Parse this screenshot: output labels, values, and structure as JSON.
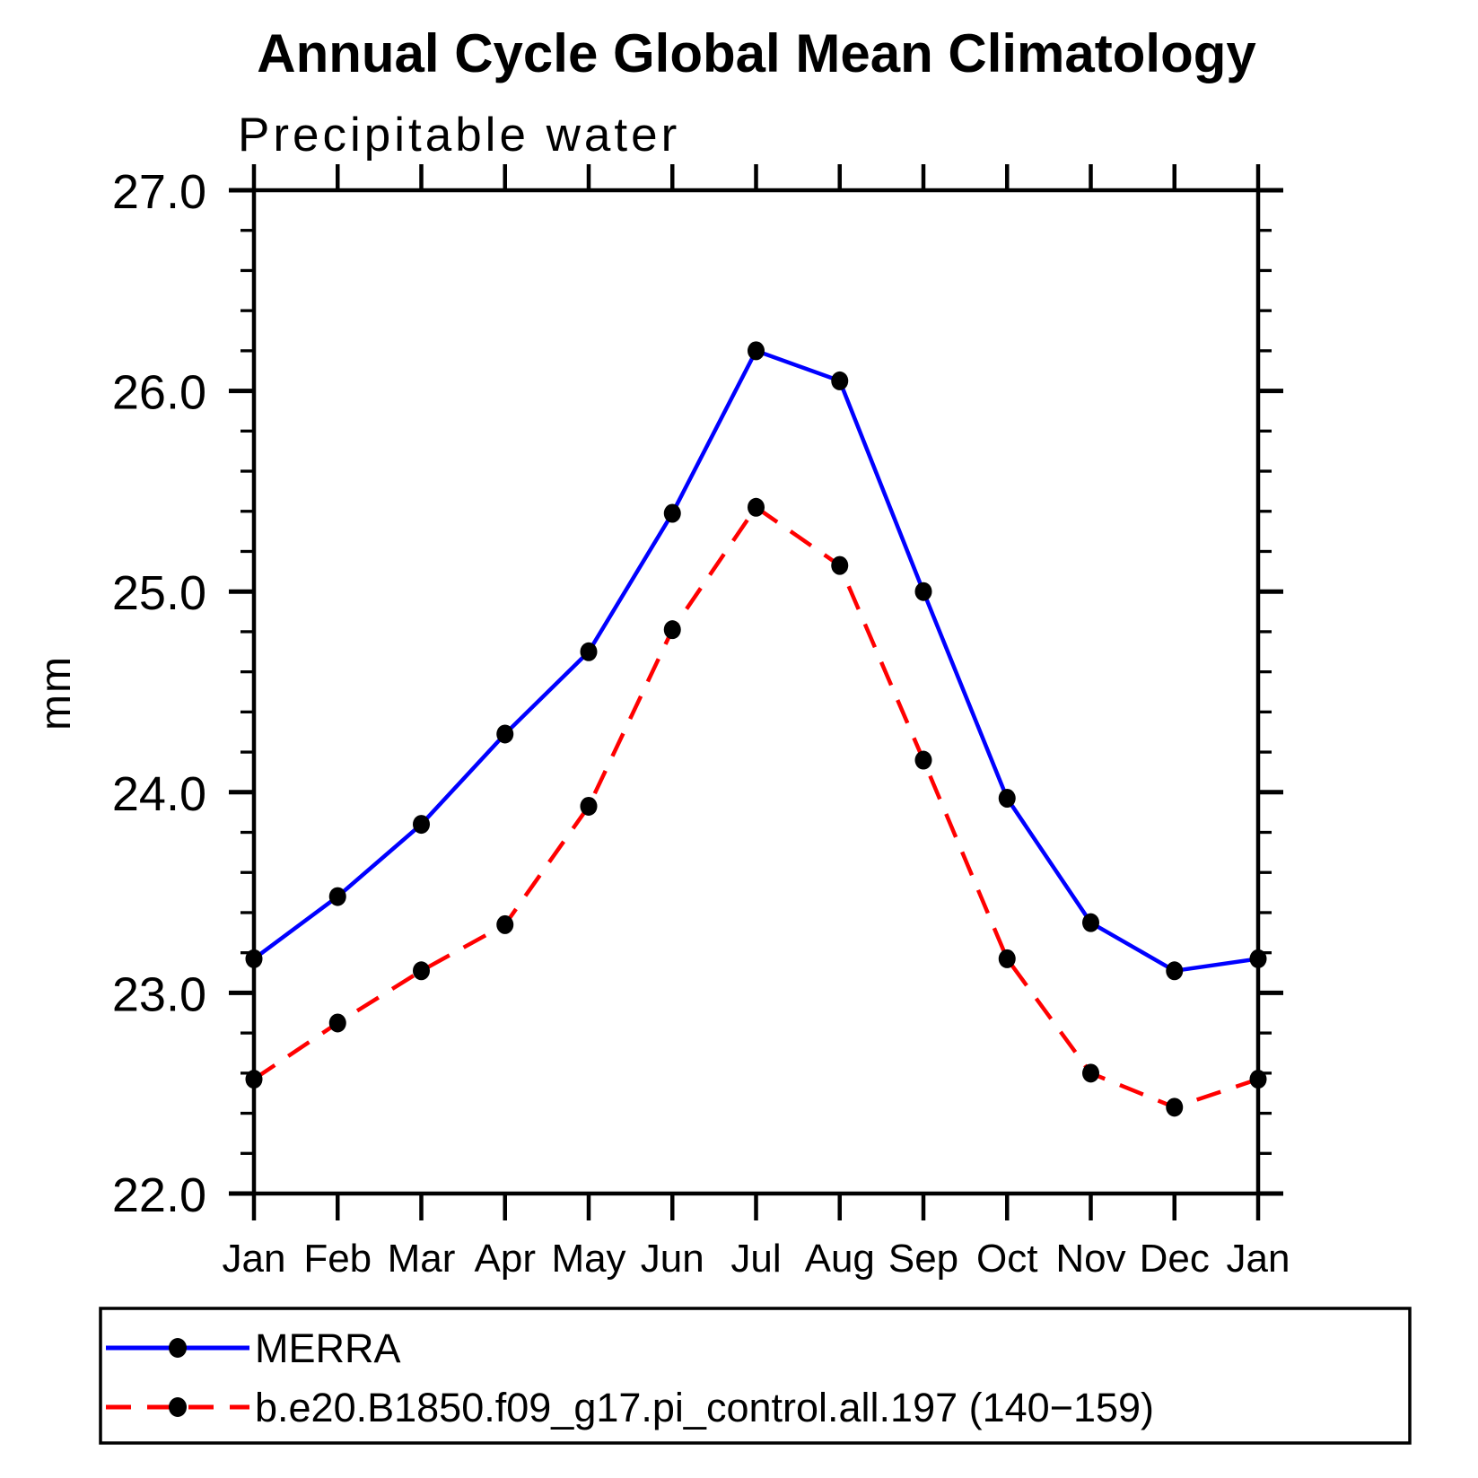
{
  "page": {
    "background_color": "#ffffff",
    "axis_color": "#000000"
  },
  "chart_data": {
    "type": "line",
    "title": "Annual Cycle Global Mean Climatology",
    "subtitle": "Precipitable water",
    "ylabel": "mm",
    "xlabel": "",
    "categories": [
      "Jan",
      "Feb",
      "Mar",
      "Apr",
      "May",
      "Jun",
      "Jul",
      "Aug",
      "Sep",
      "Oct",
      "Nov",
      "Dec",
      "Jan"
    ],
    "ylim": [
      22.0,
      27.0
    ],
    "ytick_major_step": 1.0,
    "ytick_minor_step": 0.2,
    "ytick_labels": [
      "22.0",
      "23.0",
      "24.0",
      "25.0",
      "26.0",
      "27.0"
    ],
    "grid": false,
    "legend_position": "bottom",
    "series": [
      {
        "name": "MERRA",
        "color": "#0000ff",
        "style": "solid",
        "marker": "circle",
        "marker_color": "#000000",
        "values": [
          23.17,
          23.48,
          23.84,
          24.29,
          24.7,
          25.39,
          26.2,
          26.05,
          25.0,
          23.97,
          23.35,
          23.11,
          23.17
        ]
      },
      {
        "name": "b.e20.B1850.f09_g17.pi_control.all.197 (140−159)",
        "color": "#ff0000",
        "style": "dashed",
        "marker": "circle",
        "marker_color": "#000000",
        "values": [
          22.57,
          22.85,
          23.11,
          23.34,
          23.93,
          24.81,
          25.42,
          25.13,
          24.16,
          23.17,
          22.6,
          22.43,
          22.57
        ]
      }
    ]
  }
}
